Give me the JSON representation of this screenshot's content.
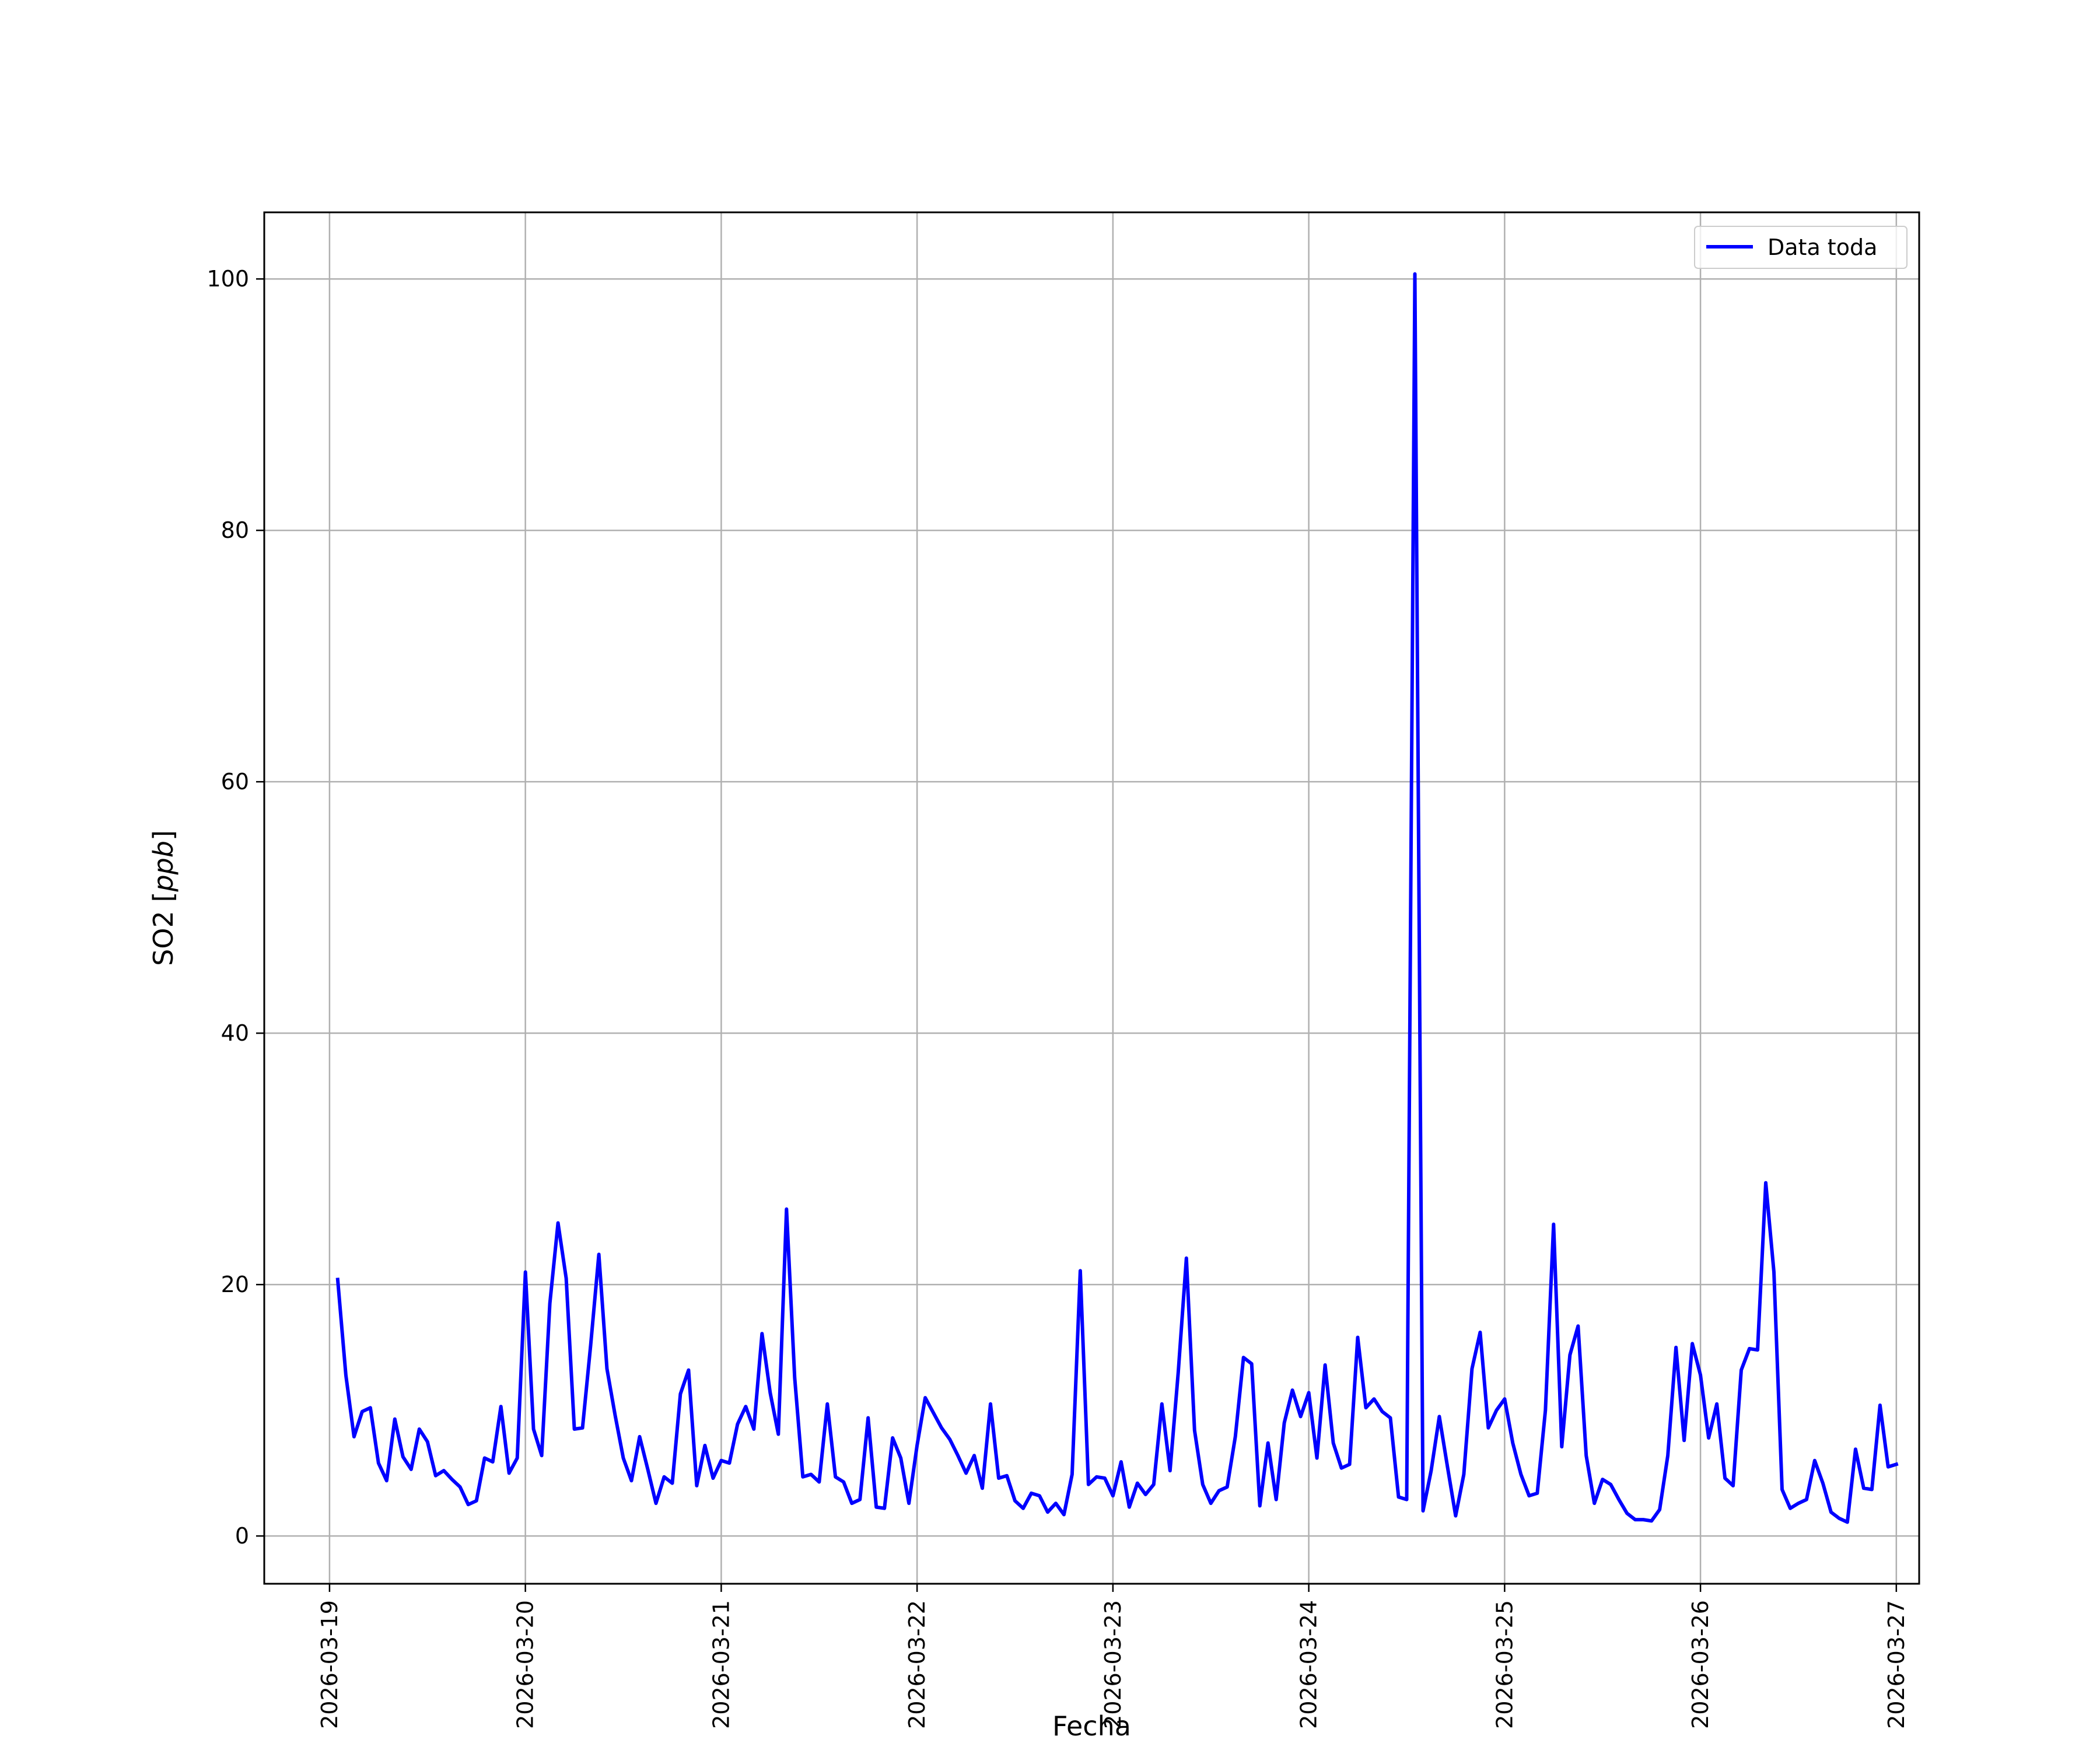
{
  "chart_data": {
    "type": "line",
    "xlabel": "Fecha",
    "ylabel": "SO2 [ppb]",
    "ylabel_main": "SO2",
    "ylabel_unit": "ppb",
    "xlim": [
      "2026-03-18 16:00",
      "2026-03-27 02:48"
    ],
    "ylim": [
      -3.8,
      105.3
    ],
    "grid": true,
    "legend_position": "top-right",
    "x_ticks": [
      "2026-03-19",
      "2026-03-20",
      "2026-03-21",
      "2026-03-22",
      "2026-03-23",
      "2026-03-24",
      "2026-03-25",
      "2026-03-26",
      "2026-03-27"
    ],
    "y_ticks": [
      0,
      20,
      40,
      60,
      80,
      100
    ],
    "colors": {
      "series": "#0000ff",
      "grid": "#b0b0b0"
    },
    "series": [
      {
        "name": "Data toda",
        "start": "2026-03-19 01:00",
        "interval_hours": 1,
        "values": [
          20.4,
          12.8,
          7.9,
          9.9,
          10.2,
          5.8,
          4.4,
          9.3,
          6.3,
          5.3,
          8.5,
          7.5,
          4.8,
          5.2,
          4.5,
          3.9,
          2.5,
          2.8,
          6.2,
          5.9,
          10.3,
          5.0,
          6.2,
          21.0,
          8.5,
          6.4,
          18.5,
          24.9,
          20.5,
          8.5,
          8.6,
          15.2,
          22.4,
          13.3,
          9.6,
          6.2,
          4.4,
          7.9,
          5.3,
          2.6,
          4.7,
          4.2,
          11.3,
          13.2,
          4.0,
          7.2,
          4.6,
          6.0,
          5.8,
          8.9,
          10.3,
          8.5,
          16.1,
          11.4,
          8.1,
          26.0,
          12.6,
          4.7,
          4.9,
          4.3,
          10.5,
          4.7,
          4.3,
          2.6,
          2.9,
          9.4,
          2.3,
          2.2,
          7.8,
          6.2,
          2.6,
          7.2,
          11.0,
          9.8,
          8.6,
          7.7,
          6.4,
          5.0,
          6.4,
          3.8,
          10.5,
          4.6,
          4.8,
          2.8,
          2.2,
          3.4,
          3.2,
          1.9,
          2.6,
          1.7,
          4.9,
          21.1,
          4.1,
          4.7,
          4.6,
          3.2,
          5.9,
          2.3,
          4.2,
          3.3,
          4.1,
          10.5,
          5.2,
          13.0,
          22.1,
          8.4,
          4.1,
          2.6,
          3.6,
          3.9,
          7.9,
          14.2,
          13.7,
          2.4,
          7.4,
          2.9,
          9.0,
          11.6,
          9.5,
          11.4,
          6.2,
          13.6,
          7.4,
          5.4,
          5.7,
          15.8,
          10.2,
          10.9,
          9.9,
          9.4,
          3.1,
          2.9,
          100.4,
          2.0,
          5.2,
          9.5,
          5.5,
          1.6,
          4.9,
          13.3,
          16.2,
          8.6,
          10.0,
          10.9,
          7.4,
          4.9,
          3.2,
          3.4,
          10.0,
          24.8,
          7.1,
          14.4,
          16.7,
          6.4,
          2.6,
          4.5,
          4.1,
          2.9,
          1.8,
          1.3,
          1.3,
          1.2,
          2.1,
          6.4,
          15.0,
          7.6,
          15.3,
          12.8,
          7.8,
          10.5,
          4.6,
          4.0,
          13.2,
          14.9,
          14.8,
          28.1,
          21.0,
          3.7,
          2.2,
          2.6,
          2.9,
          6.0,
          4.2,
          1.9,
          1.4,
          1.1,
          6.9,
          3.8,
          3.7,
          10.4,
          5.5,
          5.7
        ]
      }
    ]
  }
}
